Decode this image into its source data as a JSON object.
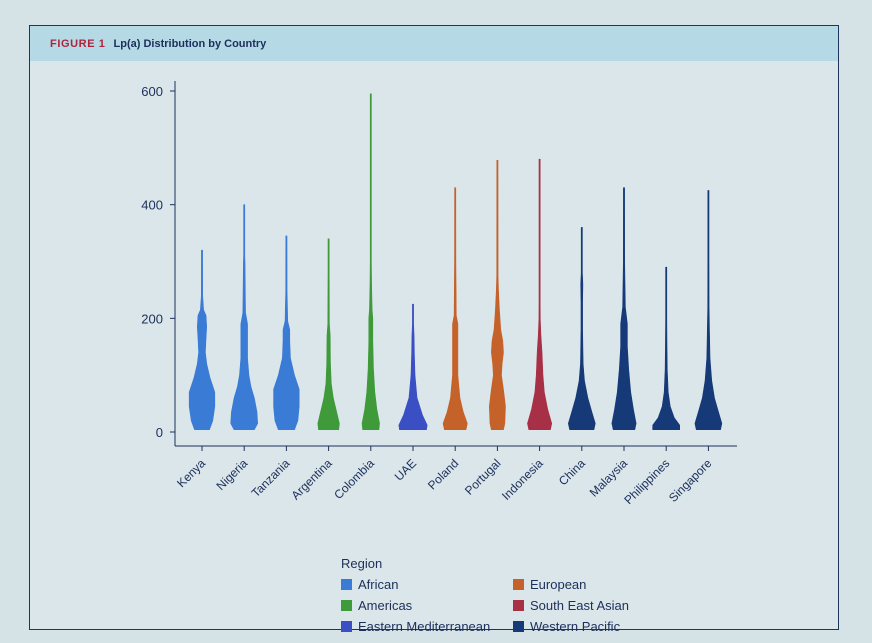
{
  "figure": {
    "label": "FIGURE 1",
    "title": "Lp(a) Distribution by Country"
  },
  "chart_data": {
    "type": "violin",
    "ylim": [
      0,
      600
    ],
    "yticks": [
      0,
      200,
      400,
      600
    ],
    "xlabel": "",
    "ylabel": "",
    "legend_title": "Region",
    "legend_position": "bottom",
    "regions": [
      {
        "name": "African",
        "color": "#3a7bd5"
      },
      {
        "name": "European",
        "color": "#c5622a"
      },
      {
        "name": "Americas",
        "color": "#3f9a3a"
      },
      {
        "name": "South East Asian",
        "color": "#a83046"
      },
      {
        "name": "Eastern Mediterranean",
        "color": "#3b4fc4"
      },
      {
        "name": "Western Pacific",
        "color": "#163a78"
      }
    ],
    "categories": [
      "Kenya",
      "Nigeria",
      "Tanzania",
      "Argentina",
      "Colombia",
      "UAE",
      "Poland",
      "Portugal",
      "Indonesia",
      "China",
      "Malaysia",
      "Philippines",
      "Singapore"
    ],
    "violins": [
      {
        "country": "Kenya",
        "region": "African",
        "min": 4,
        "max": 320,
        "profile": [
          [
            4,
            0.55
          ],
          [
            20,
            0.8
          ],
          [
            45,
            0.95
          ],
          [
            70,
            0.95
          ],
          [
            95,
            0.6
          ],
          [
            120,
            0.35
          ],
          [
            140,
            0.25
          ],
          [
            165,
            0.3
          ],
          [
            185,
            0.35
          ],
          [
            205,
            0.3
          ],
          [
            215,
            0.12
          ],
          [
            240,
            0.05
          ],
          [
            320,
            0.04
          ]
        ]
      },
      {
        "country": "Nigeria",
        "region": "African",
        "min": 4,
        "max": 400,
        "profile": [
          [
            4,
            0.75
          ],
          [
            15,
            1.0
          ],
          [
            35,
            0.95
          ],
          [
            60,
            0.75
          ],
          [
            80,
            0.5
          ],
          [
            100,
            0.35
          ],
          [
            130,
            0.25
          ],
          [
            160,
            0.25
          ],
          [
            190,
            0.25
          ],
          [
            210,
            0.1
          ],
          [
            300,
            0.06
          ],
          [
            310,
            0.04
          ],
          [
            400,
            0.03
          ]
        ]
      },
      {
        "country": "Tanzania",
        "region": "African",
        "min": 4,
        "max": 345,
        "profile": [
          [
            4,
            0.6
          ],
          [
            20,
            0.85
          ],
          [
            45,
            0.95
          ],
          [
            75,
            0.95
          ],
          [
            100,
            0.6
          ],
          [
            130,
            0.3
          ],
          [
            160,
            0.25
          ],
          [
            180,
            0.25
          ],
          [
            195,
            0.1
          ],
          [
            250,
            0.05
          ],
          [
            345,
            0.04
          ]
        ]
      },
      {
        "country": "Argentina",
        "region": "Americas",
        "min": 4,
        "max": 340,
        "profile": [
          [
            4,
            0.75
          ],
          [
            15,
            0.8
          ],
          [
            35,
            0.6
          ],
          [
            60,
            0.35
          ],
          [
            85,
            0.2
          ],
          [
            120,
            0.14
          ],
          [
            170,
            0.12
          ],
          [
            190,
            0.06
          ],
          [
            280,
            0.04
          ],
          [
            340,
            0.02
          ]
        ]
      },
      {
        "country": "Colombia",
        "region": "Americas",
        "min": 4,
        "max": 595,
        "profile": [
          [
            4,
            0.6
          ],
          [
            15,
            0.65
          ],
          [
            40,
            0.45
          ],
          [
            70,
            0.3
          ],
          [
            110,
            0.2
          ],
          [
            160,
            0.15
          ],
          [
            200,
            0.15
          ],
          [
            215,
            0.1
          ],
          [
            260,
            0.06
          ],
          [
            300,
            0.04
          ],
          [
            470,
            0.03
          ],
          [
            595,
            0.01
          ]
        ]
      },
      {
        "country": "UAE",
        "region": "Eastern Mediterranean",
        "min": 4,
        "max": 225,
        "profile": [
          [
            4,
            1.0
          ],
          [
            12,
            1.05
          ],
          [
            30,
            0.7
          ],
          [
            60,
            0.3
          ],
          [
            100,
            0.15
          ],
          [
            140,
            0.1
          ],
          [
            170,
            0.08
          ],
          [
            190,
            0.04
          ],
          [
            225,
            0.02
          ]
        ]
      },
      {
        "country": "Poland",
        "region": "European",
        "min": 4,
        "max": 430,
        "profile": [
          [
            4,
            0.8
          ],
          [
            15,
            0.9
          ],
          [
            35,
            0.6
          ],
          [
            60,
            0.35
          ],
          [
            100,
            0.2
          ],
          [
            150,
            0.2
          ],
          [
            190,
            0.2
          ],
          [
            205,
            0.08
          ],
          [
            300,
            0.05
          ],
          [
            430,
            0.04
          ]
        ]
      },
      {
        "country": "Portugal",
        "region": "European",
        "min": 4,
        "max": 478,
        "profile": [
          [
            4,
            0.45
          ],
          [
            15,
            0.55
          ],
          [
            45,
            0.6
          ],
          [
            75,
            0.45
          ],
          [
            100,
            0.3
          ],
          [
            120,
            0.35
          ],
          [
            140,
            0.45
          ],
          [
            160,
            0.4
          ],
          [
            180,
            0.25
          ],
          [
            215,
            0.15
          ],
          [
            250,
            0.08
          ],
          [
            275,
            0.05
          ],
          [
            478,
            0.03
          ]
        ]
      },
      {
        "country": "Indonesia",
        "region": "South East Asian",
        "min": 4,
        "max": 480,
        "profile": [
          [
            4,
            0.8
          ],
          [
            15,
            0.9
          ],
          [
            40,
            0.6
          ],
          [
            70,
            0.35
          ],
          [
            100,
            0.25
          ],
          [
            140,
            0.18
          ],
          [
            170,
            0.1
          ],
          [
            200,
            0.05
          ],
          [
            230,
            0.03
          ],
          [
            480,
            0.02
          ]
        ]
      },
      {
        "country": "China",
        "region": "Western Pacific",
        "min": 4,
        "max": 360,
        "profile": [
          [
            4,
            0.9
          ],
          [
            15,
            1.0
          ],
          [
            35,
            0.75
          ],
          [
            60,
            0.45
          ],
          [
            90,
            0.2
          ],
          [
            120,
            0.1
          ],
          [
            180,
            0.06
          ],
          [
            230,
            0.06
          ],
          [
            260,
            0.08
          ],
          [
            280,
            0.04
          ],
          [
            360,
            0.02
          ]
        ]
      },
      {
        "country": "Malaysia",
        "region": "Western Pacific",
        "min": 4,
        "max": 430,
        "profile": [
          [
            4,
            0.8
          ],
          [
            15,
            0.9
          ],
          [
            40,
            0.7
          ],
          [
            70,
            0.5
          ],
          [
            110,
            0.35
          ],
          [
            150,
            0.25
          ],
          [
            190,
            0.25
          ],
          [
            220,
            0.1
          ],
          [
            300,
            0.05
          ],
          [
            430,
            0.04
          ]
        ]
      },
      {
        "country": "Philippines",
        "region": "Western Pacific",
        "min": 4,
        "max": 290,
        "profile": [
          [
            4,
            1.0
          ],
          [
            12,
            1.0
          ],
          [
            25,
            0.6
          ],
          [
            45,
            0.3
          ],
          [
            70,
            0.15
          ],
          [
            110,
            0.08
          ],
          [
            150,
            0.06
          ],
          [
            200,
            0.04
          ],
          [
            255,
            0.03
          ],
          [
            290,
            0.02
          ]
        ]
      },
      {
        "country": "Singapore",
        "region": "Western Pacific",
        "min": 4,
        "max": 425,
        "profile": [
          [
            4,
            0.9
          ],
          [
            15,
            1.0
          ],
          [
            35,
            0.75
          ],
          [
            60,
            0.45
          ],
          [
            90,
            0.25
          ],
          [
            130,
            0.12
          ],
          [
            180,
            0.08
          ],
          [
            220,
            0.05
          ],
          [
            300,
            0.04
          ],
          [
            425,
            0.03
          ]
        ]
      }
    ]
  }
}
